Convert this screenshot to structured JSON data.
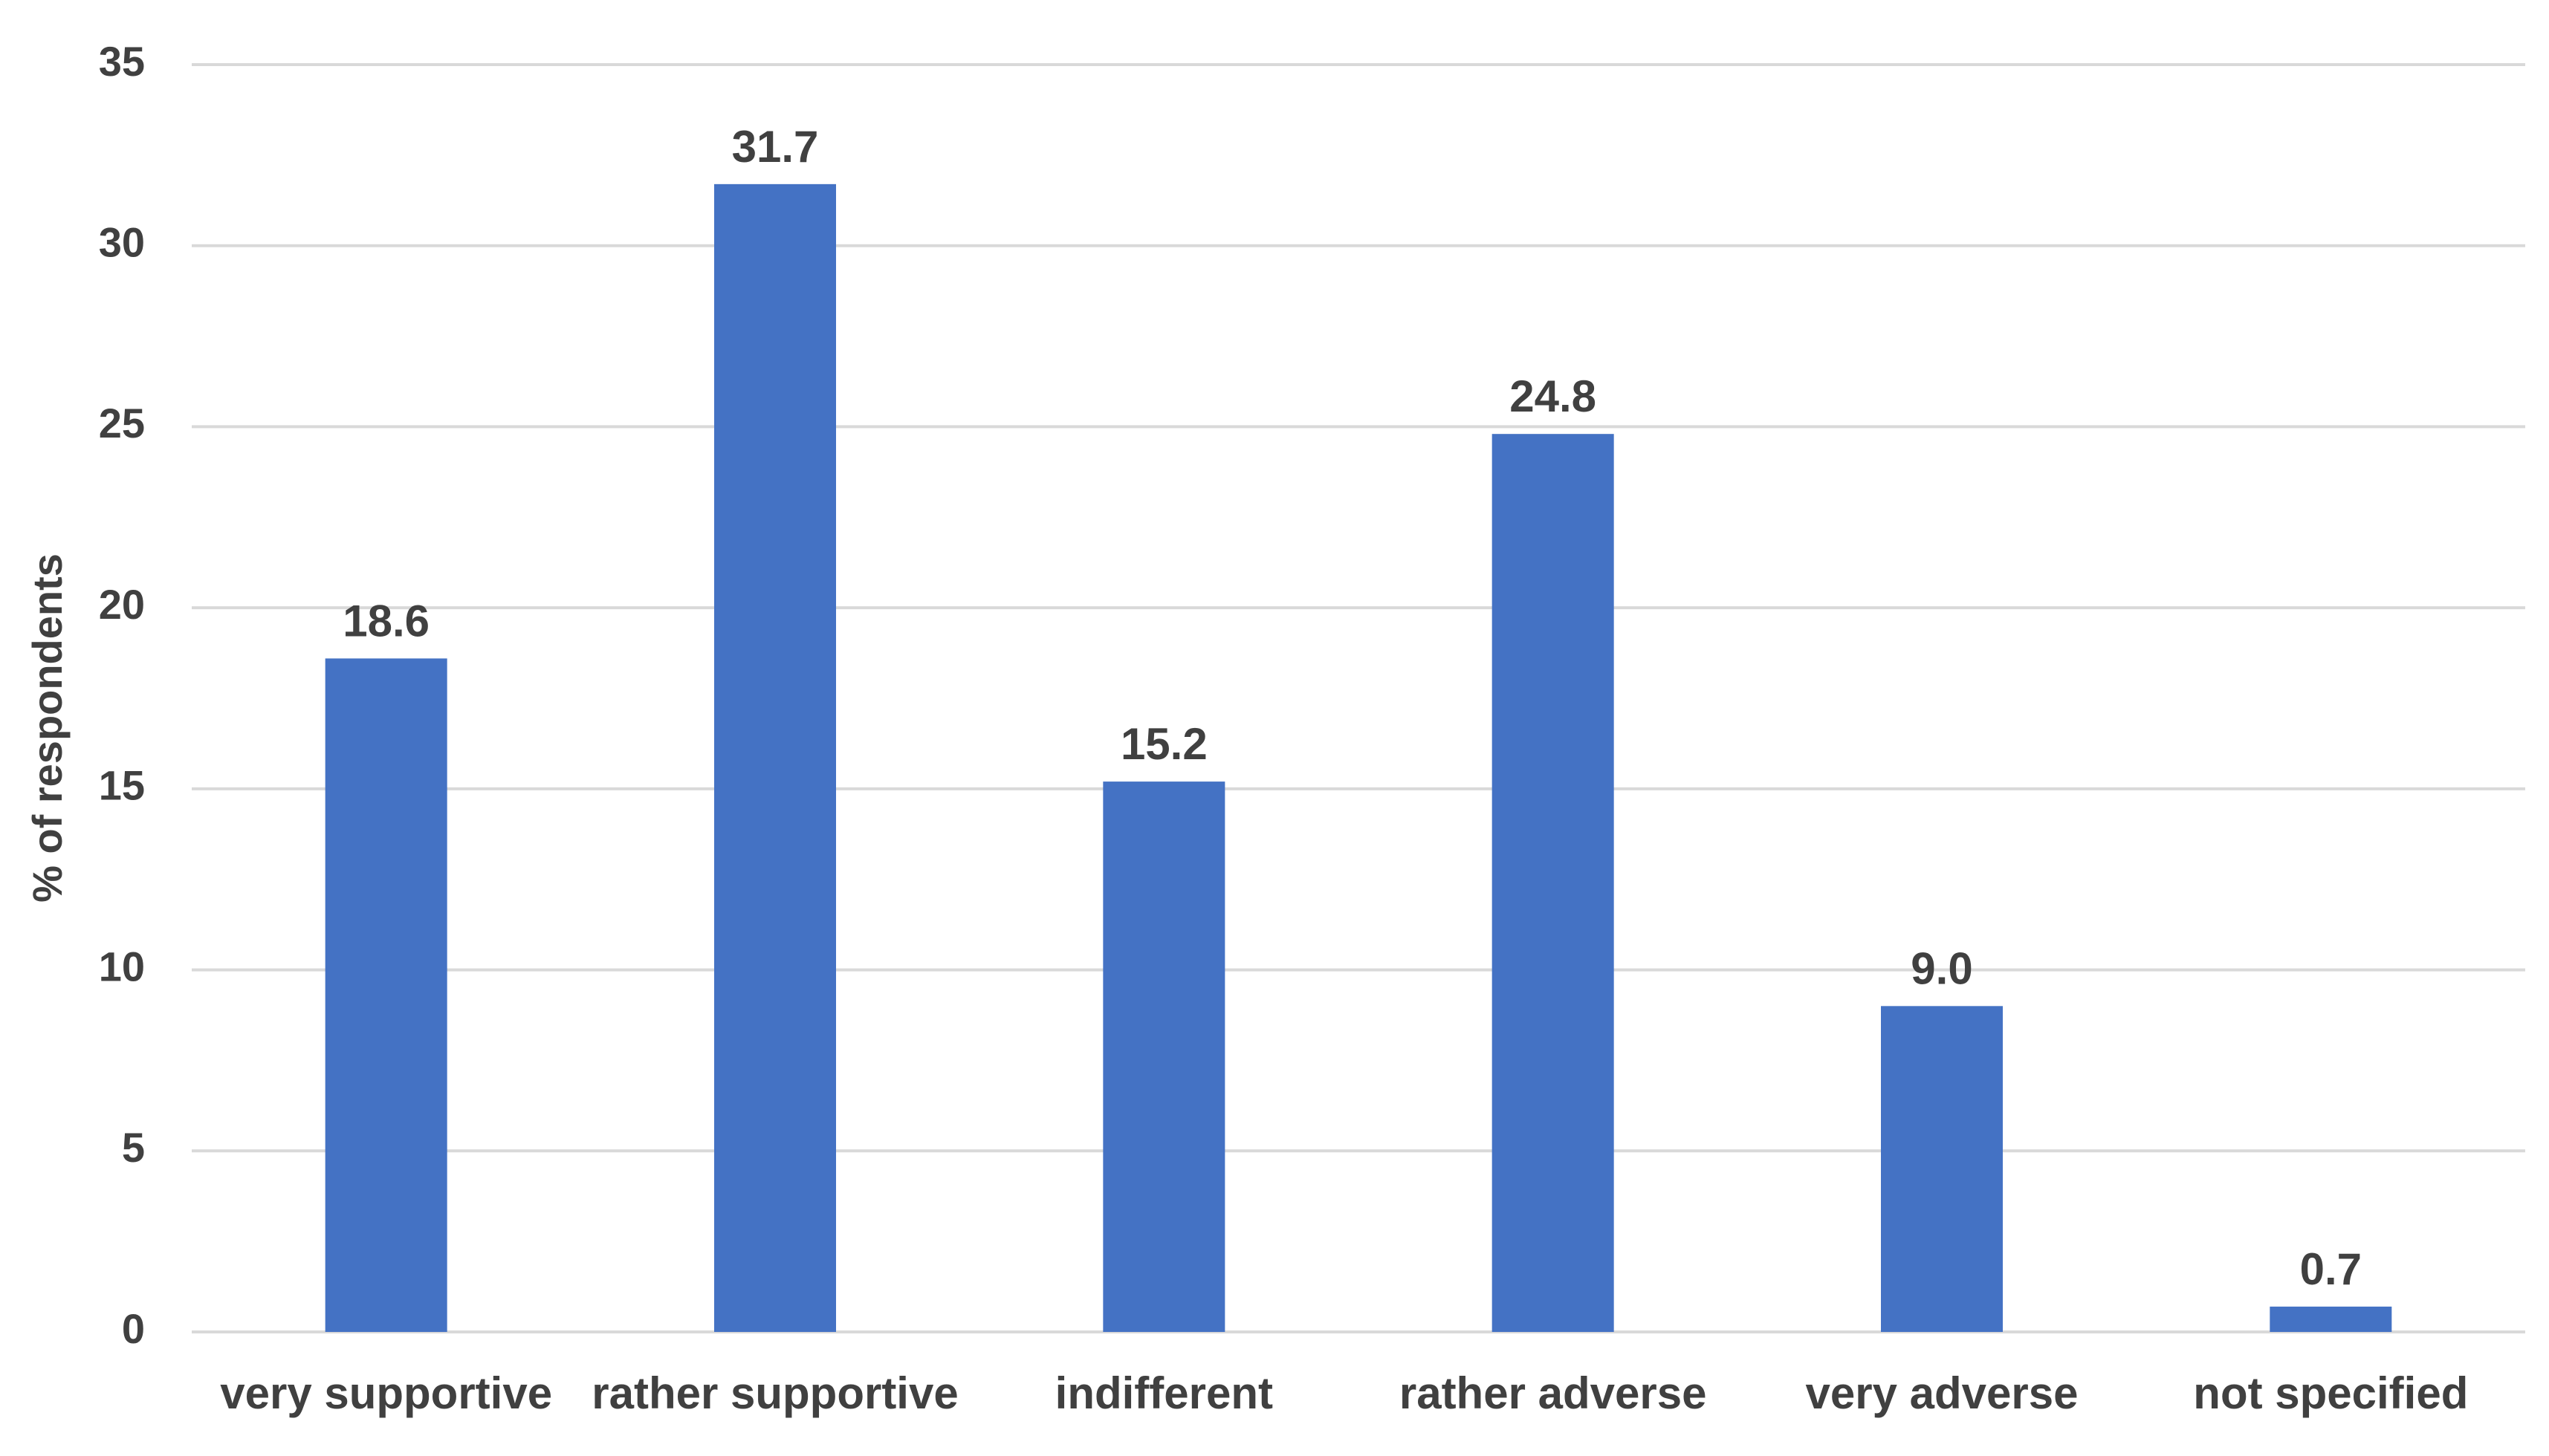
{
  "chart_data": {
    "type": "bar",
    "title": "",
    "xlabel": "",
    "ylabel": "% of respondents",
    "categories": [
      "very supportive",
      "rather supportive",
      "indifferent",
      "rather adverse",
      "very adverse",
      "not specified"
    ],
    "values": [
      18.6,
      31.7,
      15.2,
      24.8,
      9.0,
      0.7
    ],
    "data_labels": [
      "18.6",
      "31.7",
      "15.2",
      "24.8",
      "9.0",
      "0.7"
    ],
    "ylim": [
      0,
      35
    ],
    "yticks": [
      0,
      5,
      10,
      15,
      20,
      25,
      30,
      35
    ],
    "grid": true,
    "legend": "none",
    "bar_color": "#4472c4",
    "grid_color": "#d9d9d9",
    "text_color": "#404040"
  }
}
